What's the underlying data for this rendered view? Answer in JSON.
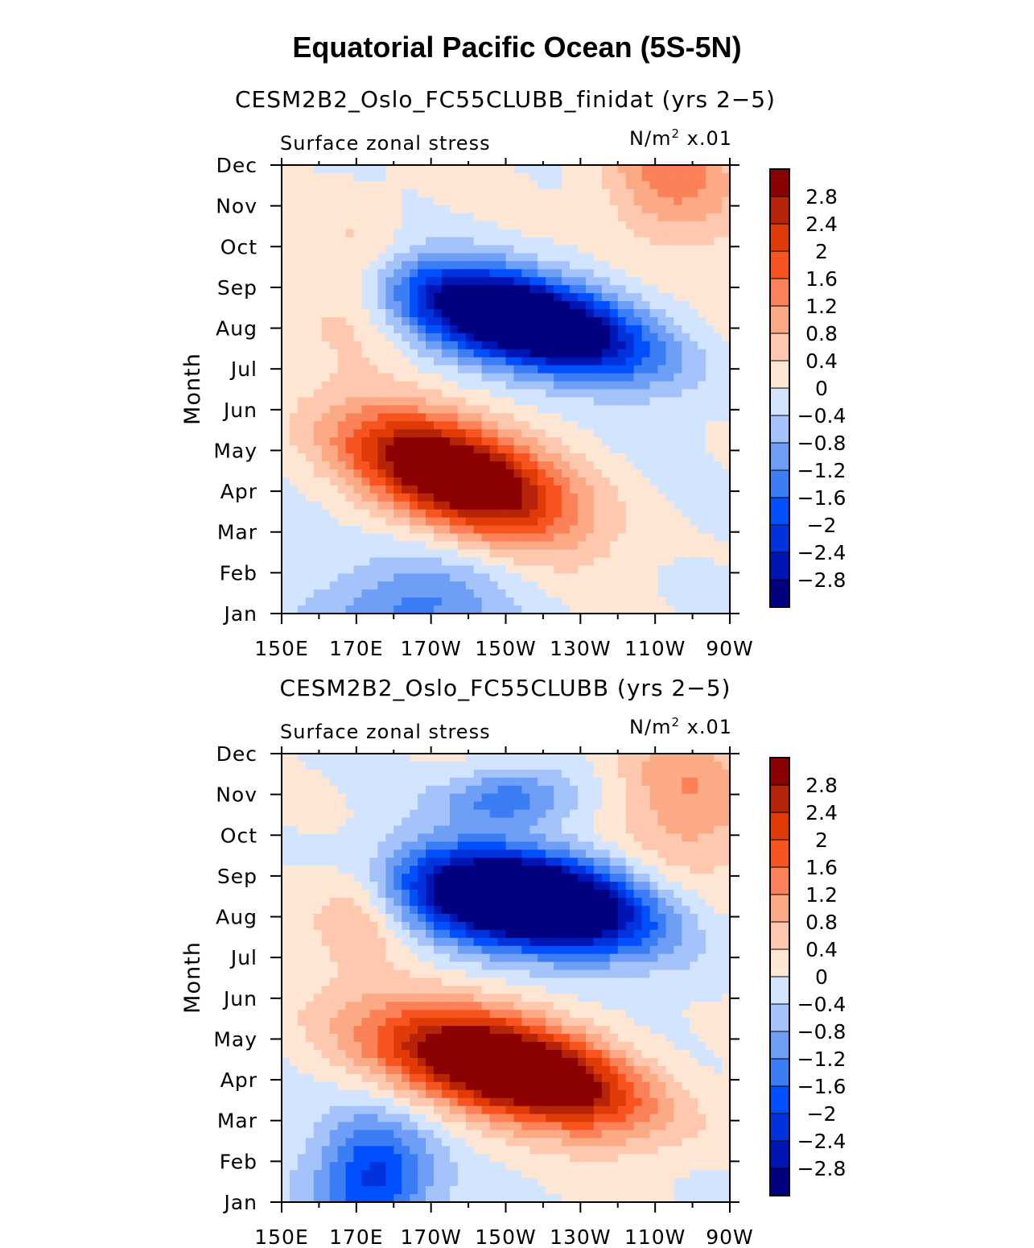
{
  "title": "Equatorial Pacific Ocean (5S-5N)",
  "colorbar": {
    "colors": [
      "#000080",
      "#0016b4",
      "#0033dc",
      "#0050ff",
      "#3a7df5",
      "#6e9ef5",
      "#a5c3fb",
      "#d3e5fe",
      "#fee6d5",
      "#fdc8ad",
      "#fca985",
      "#fa8158",
      "#f8541f",
      "#e03a07",
      "#b52309",
      "#8b0000"
    ],
    "labels": [
      "-2.8",
      "-2.4",
      "-2",
      "-1.6",
      "-1.2",
      "-0.8",
      "-0.4",
      "0",
      "0.4",
      "0.8",
      "1.2",
      "1.6",
      "2",
      "2.4",
      "2.8"
    ],
    "label_text": [
      "−2.8",
      "−2.4",
      "−2",
      "−1.6",
      "−1.2",
      "−0.8",
      "−0.4",
      "0",
      "0.4",
      "0.8",
      "1.2",
      "1.6",
      "2",
      "2.4",
      "2.8"
    ]
  },
  "chart_data": [
    {
      "type": "heatmap",
      "title": "CESM2B2_Oslo_FC55CLUBB_finidat (yrs 2−5)",
      "left_subtitle": "Surface zonal stress",
      "units_text": "N/m",
      "units_sup": "2",
      "units_scale": " x.01",
      "xlabel": "",
      "ylabel": "Month",
      "x_ticks": [
        "150E",
        "170E",
        "170W",
        "150W",
        "130W",
        "110W",
        "90W"
      ],
      "y_ticks": [
        "Jan",
        "Feb",
        "Mar",
        "Apr",
        "May",
        "Jun",
        "Jul",
        "Aug",
        "Sep",
        "Oct",
        "Nov",
        "Dec"
      ],
      "levels": [
        -2.8,
        -2.4,
        -2,
        -1.6,
        -1.2,
        -0.8,
        -0.4,
        0,
        0.4,
        0.8,
        1.2,
        1.6,
        2,
        2.4,
        2.8
      ],
      "x_range": [
        150,
        270
      ],
      "y_range": [
        0,
        11
      ],
      "features": [
        {
          "kind": "neg",
          "amp": -5.0,
          "lon": 214,
          "month": 7.2,
          "sx": 22,
          "sy": 0.9,
          "rho": -0.55
        },
        {
          "kind": "pos",
          "amp": 4.3,
          "lon": 197,
          "month": 3.4,
          "sx": 20,
          "sy": 1.05,
          "rho": -0.55
        },
        {
          "kind": "neg",
          "amp": -1.4,
          "lon": 185,
          "month": 0.1,
          "sx": 16,
          "sy": 0.9,
          "rho": 0
        },
        {
          "kind": "pos",
          "amp": 1.3,
          "lon": 255,
          "month": 10.8,
          "sx": 14,
          "sy": 1.2,
          "rho": 0
        },
        {
          "kind": "pos",
          "amp": 0.8,
          "lon": 171,
          "month": 8.3,
          "sx": 10,
          "sy": 1.3,
          "rho": 0
        }
      ]
    },
    {
      "type": "heatmap",
      "title": "CESM2B2_Oslo_FC55CLUBB (yrs 2−5)",
      "left_subtitle": "Surface zonal stress",
      "units_text": "N/m",
      "units_sup": "2",
      "units_scale": " x.01",
      "xlabel": "",
      "ylabel": "Month",
      "x_ticks": [
        "150E",
        "170E",
        "170W",
        "150W",
        "130W",
        "110W",
        "90W"
      ],
      "y_ticks": [
        "Jan",
        "Feb",
        "Mar",
        "Apr",
        "May",
        "Jun",
        "Jul",
        "Aug",
        "Sep",
        "Oct",
        "Nov",
        "Dec"
      ],
      "levels": [
        -2.8,
        -2.4,
        -2,
        -1.6,
        -1.2,
        -0.8,
        -0.4,
        0,
        0.4,
        0.8,
        1.2,
        1.6,
        2,
        2.4,
        2.8
      ],
      "x_range": [
        150,
        270
      ],
      "y_range": [
        0,
        11
      ],
      "features": [
        {
          "kind": "neg",
          "amp": -5.5,
          "lon": 215,
          "month": 7.4,
          "sx": 22,
          "sy": 0.85,
          "rho": -0.35
        },
        {
          "kind": "pos",
          "amp": 4.6,
          "lon": 210,
          "month": 3.3,
          "sx": 24,
          "sy": 1.0,
          "rho": -0.55
        },
        {
          "kind": "neg",
          "amp": -1.5,
          "lon": 210,
          "month": 9.9,
          "sx": 12,
          "sy": 0.5,
          "rho": 0
        },
        {
          "kind": "neg",
          "amp": -2.2,
          "lon": 175,
          "month": 0.6,
          "sx": 11,
          "sy": 1.1,
          "rho": 0
        },
        {
          "kind": "pos",
          "amp": 1.1,
          "lon": 258,
          "month": 10.0,
          "sx": 14,
          "sy": 1.5,
          "rho": 0
        },
        {
          "kind": "pos",
          "amp": 0.9,
          "lon": 172,
          "month": 7.3,
          "sx": 9,
          "sy": 1.0,
          "rho": 0
        }
      ]
    }
  ]
}
